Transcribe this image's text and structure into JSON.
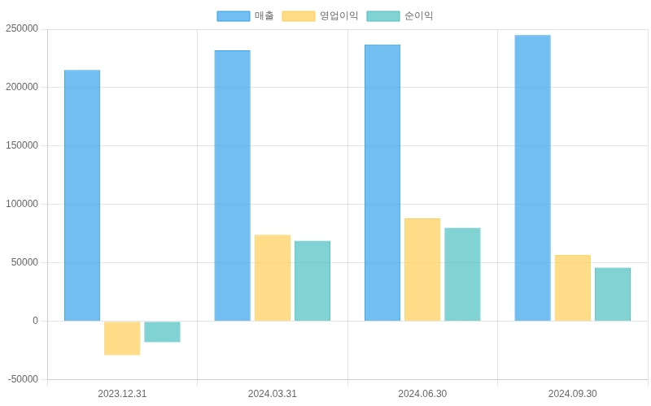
{
  "chart_data": {
    "type": "bar",
    "categories": [
      "2023.12.31",
      "2024.03.31",
      "2024.06.30",
      "2024.09.30"
    ],
    "series": [
      {
        "name": "매출",
        "color": "#36a2eb",
        "values": [
          215000,
          232000,
          237000,
          245000
        ]
      },
      {
        "name": "영업이익",
        "color": "#ffcd56",
        "values": [
          -29000,
          74000,
          88000,
          57000
        ]
      },
      {
        "name": "순이익",
        "color": "#4bc0c0",
        "values": [
          -18000,
          69000,
          80000,
          46000
        ]
      }
    ],
    "ylim": [
      -50000,
      250000
    ],
    "yticks": [
      -50000,
      0,
      50000,
      100000,
      150000,
      200000,
      250000
    ],
    "grid": true,
    "legend": "top"
  }
}
